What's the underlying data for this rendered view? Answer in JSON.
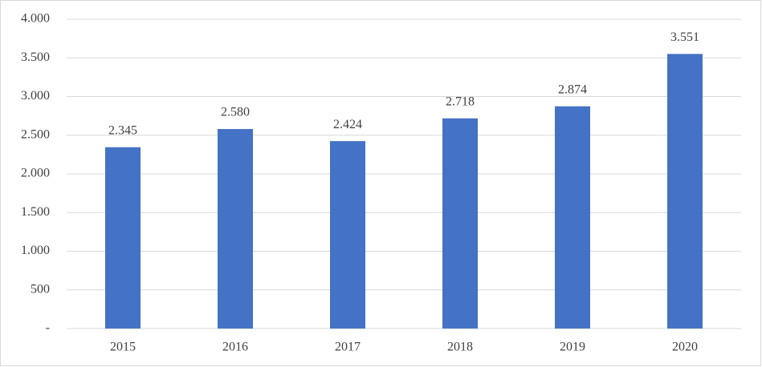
{
  "chart_data": {
    "type": "bar",
    "categories": [
      "2015",
      "2016",
      "2017",
      "2018",
      "2019",
      "2020"
    ],
    "values": [
      2345,
      2580,
      2424,
      2718,
      2874,
      3551
    ],
    "value_labels": [
      "2.345",
      "2.580",
      "2.424",
      "2.718",
      "2.874",
      "3.551"
    ],
    "color": "#4472c4",
    "ylim": [
      0,
      4000
    ],
    "yticks": [
      {
        "value": 0,
        "label": "-"
      },
      500,
      {
        "value": 1000,
        "label": "1.000"
      },
      {
        "value": 1500,
        "label": "1.500"
      },
      {
        "value": 2000,
        "label": "2.000"
      },
      {
        "value": 2500,
        "label": "2.500"
      },
      {
        "value": 3000,
        "label": "3.000"
      },
      {
        "value": 3500,
        "label": "3.500"
      },
      {
        "value": 4000,
        "label": "4.000"
      }
    ],
    "grid": true
  }
}
